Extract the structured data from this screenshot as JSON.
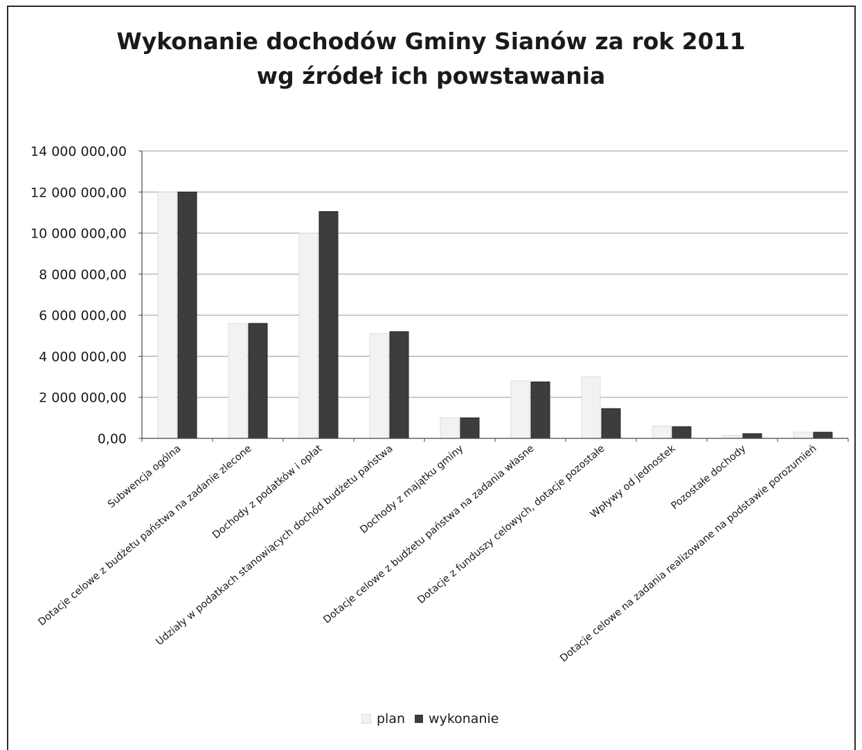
{
  "title_line1": "Wykonanie dochodów Gminy Sianów za rok 2011",
  "title_line2": "wg źródeł ich powstawania",
  "legend": {
    "plan": "plan",
    "wykonanie": "wykonanie"
  },
  "colors": {
    "plan": "#f2f2f2",
    "wykonanie": "#3d3d3d",
    "grid": "#9a9a9a",
    "axis": "#444444"
  },
  "chart_data": {
    "type": "bar",
    "title": "Wykonanie dochodów Gminy Sianów za rok 2011 wg źródeł ich powstawania",
    "xlabel": "",
    "ylabel": "",
    "ylim": [
      0,
      14000000
    ],
    "yticks": [
      0,
      2000000,
      4000000,
      6000000,
      8000000,
      10000000,
      12000000,
      14000000
    ],
    "ytick_labels": [
      "0,00",
      "2 000 000,00",
      "4 000 000,00",
      "6 000 000,00",
      "8 000 000,00",
      "10 000 000,00",
      "12 000 000,00",
      "14 000 000,00"
    ],
    "grid": true,
    "legend_position": "bottom",
    "categories": [
      "Subwencja ogólna",
      "Dotacje celowe z budżetu państwa na zadanie zlecone",
      "Dochody z podatków i opłat",
      "Udziały w podatkach stanowiących dochód budżetu państwa",
      "Dochody z majątku gminy",
      "Dotacje celowe z budżetu państwa na zadania własne",
      "Dotacje z funduszy celowych, dotacje pozostałe",
      "Wpływy od jednostek",
      "Pozostałe dochody",
      "Dotacje celowe na zadania realizowane na podstawie porozumień"
    ],
    "series": [
      {
        "name": "plan",
        "values": [
          12000000,
          5600000,
          10000000,
          5100000,
          1000000,
          2800000,
          3000000,
          600000,
          150000,
          300000
        ]
      },
      {
        "name": "wykonanie",
        "values": [
          12000000,
          5600000,
          11050000,
          5200000,
          1000000,
          2750000,
          1450000,
          570000,
          230000,
          300000
        ]
      }
    ]
  }
}
